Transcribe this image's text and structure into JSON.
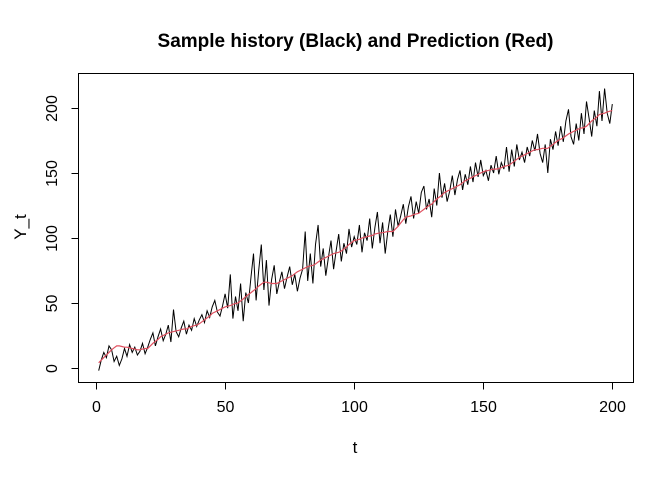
{
  "page": {
    "background": "#ffffff"
  },
  "chart_data": {
    "type": "line",
    "title": "Sample history (Black) and Prediction (Red)",
    "xlabel": "t",
    "ylabel": "Y_t",
    "x_ticks": [
      0,
      50,
      100,
      150,
      200
    ],
    "y_ticks": [
      0,
      50,
      100,
      150,
      200
    ],
    "xlim": [
      -7,
      208
    ],
    "ylim": [
      -10.8,
      226.9
    ],
    "grid": false,
    "legend_position": "none",
    "axis_color": "#000000",
    "x": [
      1,
      2,
      3,
      4,
      5,
      6,
      7,
      8,
      9,
      10,
      11,
      12,
      13,
      14,
      15,
      16,
      17,
      18,
      19,
      20,
      21,
      22,
      23,
      24,
      25,
      26,
      27,
      28,
      29,
      30,
      31,
      32,
      33,
      34,
      35,
      36,
      37,
      38,
      39,
      40,
      41,
      42,
      43,
      44,
      45,
      46,
      47,
      48,
      49,
      50,
      51,
      52,
      53,
      54,
      55,
      56,
      57,
      58,
      59,
      60,
      61,
      62,
      63,
      64,
      65,
      66,
      67,
      68,
      69,
      70,
      71,
      72,
      73,
      74,
      75,
      76,
      77,
      78,
      79,
      80,
      81,
      82,
      83,
      84,
      85,
      86,
      87,
      88,
      89,
      90,
      91,
      92,
      93,
      94,
      95,
      96,
      97,
      98,
      99,
      100,
      101,
      102,
      103,
      104,
      105,
      106,
      107,
      108,
      109,
      110,
      111,
      112,
      113,
      114,
      115,
      116,
      117,
      118,
      119,
      120,
      121,
      122,
      123,
      124,
      125,
      126,
      127,
      128,
      129,
      130,
      131,
      132,
      133,
      134,
      135,
      136,
      137,
      138,
      139,
      140,
      141,
      142,
      143,
      144,
      145,
      146,
      147,
      148,
      149,
      150,
      151,
      152,
      153,
      154,
      155,
      156,
      157,
      158,
      159,
      160,
      161,
      162,
      163,
      164,
      165,
      166,
      167,
      168,
      169,
      170,
      171,
      172,
      173,
      174,
      175,
      176,
      177,
      178,
      179,
      180,
      181,
      182,
      183,
      184,
      185,
      186,
      187,
      188,
      189,
      190,
      191,
      192,
      193,
      194,
      195,
      196,
      197,
      198,
      199,
      200
    ],
    "series": [
      {
        "name": "Sample history",
        "color": "#000000",
        "stroke_width": 1,
        "values": [
          -2,
          6,
          12,
          8,
          17,
          14,
          5,
          9,
          2,
          7,
          15,
          9,
          18,
          12,
          16,
          10,
          13,
          19,
          11,
          16,
          22,
          27,
          17,
          24,
          30,
          21,
          26,
          33,
          20,
          45,
          28,
          24,
          31,
          36,
          26,
          33,
          29,
          38,
          32,
          37,
          41,
          35,
          44,
          39,
          47,
          52,
          43,
          40,
          48,
          57,
          46,
          72,
          38,
          55,
          44,
          65,
          36,
          58,
          50,
          70,
          88,
          52,
          75,
          95,
          60,
          83,
          48,
          68,
          79,
          57,
          66,
          74,
          61,
          70,
          78,
          64,
          72,
          59,
          69,
          76,
          105,
          67,
          88,
          65,
          95,
          110,
          78,
          92,
          71,
          85,
          98,
          76,
          90,
          103,
          82,
          96,
          88,
          107,
          93,
          101,
          95,
          110,
          89,
          104,
          98,
          115,
          92,
          108,
          120,
          96,
          112,
          88,
          105,
          118,
          101,
          122,
          109,
          117,
          126,
          111,
          124,
          132,
          115,
          128,
          119,
          135,
          140,
          122,
          130,
          116,
          138,
          125,
          150,
          131,
          142,
          128,
          136,
          148,
          133,
          145,
          152,
          137,
          149,
          141,
          155,
          143,
          158,
          147,
          160,
          148,
          152,
          144,
          156,
          150,
          163,
          149,
          158,
          153,
          170,
          151,
          168,
          155,
          172,
          160,
          166,
          158,
          170,
          163,
          175,
          167,
          180,
          165,
          158,
          172,
          150,
          176,
          168,
          182,
          171,
          186,
          174,
          190,
          199,
          178,
          172,
          188,
          175,
          196,
          180,
          205,
          192,
          178,
          198,
          186,
          213,
          190,
          215,
          196,
          188,
          203
        ]
      },
      {
        "name": "Prediction",
        "color": "#e0505f",
        "stroke_width": 1.2,
        "values": [
          4,
          6,
          8,
          10,
          12,
          14,
          15.5,
          17,
          17,
          16.5,
          16,
          16,
          15.5,
          15,
          14.5,
          14,
          14,
          14.5,
          15,
          15,
          17,
          19,
          20.5,
          22,
          24,
          25,
          26,
          27,
          27.5,
          28,
          28.5,
          29,
          29.5,
          30,
          30,
          31,
          32,
          32.5,
          33,
          34,
          35.5,
          37,
          38.5,
          40,
          42,
          43,
          44,
          45,
          46,
          47,
          47.5,
          48,
          49,
          49.5,
          50,
          51.5,
          53,
          55,
          56.5,
          58,
          59.5,
          61,
          63,
          64.5,
          66,
          66,
          65.5,
          65,
          65,
          65,
          66,
          67,
          68,
          69,
          70,
          71,
          72.5,
          74,
          75,
          76,
          77,
          78,
          78.5,
          79,
          80,
          81.5,
          83,
          84,
          85,
          86,
          87,
          88,
          88.5,
          89,
          90,
          91.5,
          93,
          95,
          96.5,
          98,
          98.5,
          99,
          100,
          100.5,
          101,
          101.5,
          102,
          103,
          103.5,
          104,
          104,
          104.5,
          105,
          105,
          105,
          107,
          109,
          111.5,
          114,
          116,
          116.5,
          117,
          118,
          118.5,
          119,
          120.5,
          122,
          123.5,
          125,
          126,
          128,
          130,
          131.5,
          133,
          135,
          136,
          137,
          138,
          139,
          140,
          141,
          142.5,
          144,
          145,
          146,
          147,
          148,
          149,
          150,
          151,
          151.5,
          152,
          152.5,
          153,
          153,
          153.5,
          154,
          155,
          155.5,
          156,
          157.5,
          159,
          160.5,
          162,
          163,
          164,
          165,
          166,
          167,
          168,
          168,
          168.5,
          169,
          169,
          169,
          170.5,
          172,
          173.5,
          175,
          176,
          177,
          178.5,
          180,
          181,
          182,
          183,
          184,
          184.5,
          185,
          186,
          188,
          190,
          191.5,
          193,
          195,
          195.5,
          196,
          197,
          197.5,
          198
        ]
      }
    ]
  }
}
